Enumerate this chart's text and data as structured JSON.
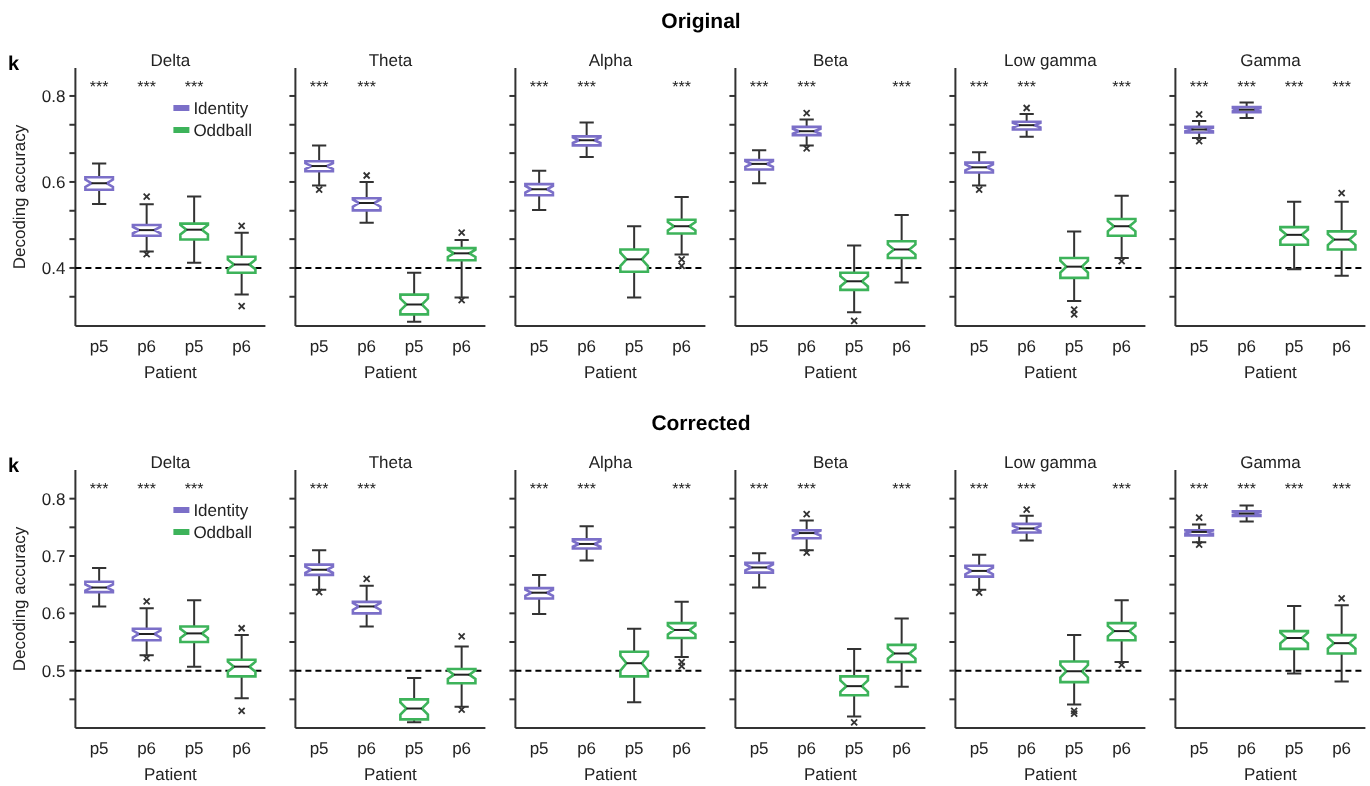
{
  "chart_data": [
    {
      "type": "box",
      "title": "Delta",
      "xlabel": "Patient",
      "ylabel": "Decoding accuracy",
      "categories": [
        "p5",
        "p6",
        "p5",
        "p6"
      ],
      "ylim": [
        0.265,
        0.865
      ],
      "yticks": [
        {
          "value": 0.333,
          "label": null
        },
        0.4,
        {
          "value": 0.467,
          "label": null
        },
        {
          "value": 0.533,
          "label": null
        },
        0.6,
        {
          "value": 0.667,
          "label": null
        },
        {
          "value": 0.733,
          "label": null
        },
        0.8
      ],
      "legend": "top right",
      "marker": "cross",
      "ref_lines": [
        {
          "axis": "y",
          "value": 0.4,
          "line_style": "dashed",
          "color": "#000000"
        }
      ],
      "annotations": [
        "k",
        "Original"
      ],
      "series": [
        {
          "name": "Identity",
          "color": "#7b6fc8",
          "value_labels": [
            "***",
            "***",
            null,
            null
          ],
          "boxes": [
            {
              "low": 0.549,
              "q1": 0.582,
              "median": 0.597,
              "q3": 0.611,
              "high": 0.643
            },
            {
              "low": 0.438,
              "q1": 0.475,
              "median": 0.488,
              "q3": 0.5,
              "high": 0.548,
              "outliers": [
                0.566,
                0.432
              ]
            },
            null,
            null
          ]
        },
        {
          "name": "Oddball",
          "color": "#3db35a",
          "value_labels": [
            null,
            null,
            "***",
            null
          ],
          "boxes": [
            null,
            null,
            {
              "low": 0.412,
              "q1": 0.466,
              "median": 0.489,
              "q3": 0.503,
              "high": 0.566
            },
            {
              "low": 0.338,
              "q1": 0.389,
              "median": 0.408,
              "q3": 0.426,
              "high": 0.482,
              "outliers": [
                0.498,
                0.311
              ]
            }
          ]
        }
      ]
    },
    {
      "type": "box",
      "title": "Theta",
      "xlabel": "Patient",
      "categories": [
        "p5",
        "p6",
        "p5",
        "p6"
      ],
      "ylim": [
        0.265,
        0.865
      ],
      "yticks": [
        {
          "value": 0.333,
          "label": null
        },
        0.4,
        {
          "value": 0.467,
          "label": null
        },
        {
          "value": 0.533,
          "label": null
        },
        0.6,
        {
          "value": 0.667,
          "label": null
        },
        {
          "value": 0.733,
          "label": null
        },
        0.8
      ],
      "tick_labels": "x",
      "marker": "cross",
      "ref_lines": [
        {
          "axis": "y",
          "value": 0.4,
          "line_style": "dashed",
          "color": "#000000"
        }
      ],
      "series": [
        {
          "color": "#7b6fc8",
          "value_labels": [
            "***",
            "***",
            null,
            null
          ],
          "boxes": [
            {
              "low": 0.592,
              "q1": 0.625,
              "median": 0.637,
              "q3": 0.648,
              "high": 0.685,
              "outliers": [
                0.582
              ]
            },
            {
              "low": 0.505,
              "q1": 0.534,
              "median": 0.551,
              "q3": 0.562,
              "high": 0.6,
              "outliers": [
                0.615
              ]
            },
            null,
            null
          ]
        },
        {
          "color": "#3db35a",
          "value_labels": [
            null,
            null,
            null,
            null
          ],
          "boxes": [
            null,
            null,
            {
              "low": 0.275,
              "q1": 0.292,
              "median": 0.315,
              "q3": 0.338,
              "high": 0.389
            },
            {
              "low": 0.331,
              "q1": 0.418,
              "median": 0.434,
              "q3": 0.446,
              "high": 0.465,
              "outliers": [
                0.482,
                0.325
              ]
            }
          ]
        }
      ]
    },
    {
      "type": "box",
      "title": "Alpha",
      "xlabel": "Patient",
      "categories": [
        "p5",
        "p6",
        "p5",
        "p6"
      ],
      "ylim": [
        0.265,
        0.865
      ],
      "yticks": [
        {
          "value": 0.333,
          "label": null
        },
        0.4,
        {
          "value": 0.467,
          "label": null
        },
        {
          "value": 0.533,
          "label": null
        },
        0.6,
        {
          "value": 0.667,
          "label": null
        },
        {
          "value": 0.733,
          "label": null
        },
        0.8
      ],
      "tick_labels": "x",
      "marker": "cross",
      "ref_lines": [
        {
          "axis": "y",
          "value": 0.4,
          "line_style": "dashed",
          "color": "#000000"
        }
      ],
      "series": [
        {
          "color": "#7b6fc8",
          "value_labels": [
            "***",
            "***",
            null,
            null
          ],
          "boxes": [
            {
              "low": 0.535,
              "q1": 0.569,
              "median": 0.583,
              "q3": 0.595,
              "high": 0.626
            },
            {
              "low": 0.658,
              "q1": 0.685,
              "median": 0.697,
              "q3": 0.706,
              "high": 0.738
            },
            null,
            null
          ]
        },
        {
          "color": "#3db35a",
          "value_labels": [
            null,
            null,
            null,
            "***"
          ],
          "boxes": [
            null,
            null,
            {
              "low": 0.331,
              "q1": 0.391,
              "median": 0.42,
              "q3": 0.443,
              "high": 0.497
            },
            {
              "low": 0.431,
              "q1": 0.48,
              "median": 0.497,
              "q3": 0.512,
              "high": 0.565,
              "outliers": [
                0.42,
                0.405
              ]
            }
          ]
        }
      ]
    },
    {
      "type": "box",
      "title": "Beta",
      "xlabel": "Patient",
      "categories": [
        "p5",
        "p6",
        "p5",
        "p6"
      ],
      "ylim": [
        0.265,
        0.865
      ],
      "yticks": [
        {
          "value": 0.333,
          "label": null
        },
        0.4,
        {
          "value": 0.467,
          "label": null
        },
        {
          "value": 0.533,
          "label": null
        },
        0.6,
        {
          "value": 0.667,
          "label": null
        },
        {
          "value": 0.733,
          "label": null
        },
        0.8
      ],
      "tick_labels": "x",
      "marker": "cross",
      "ref_lines": [
        {
          "axis": "y",
          "value": 0.4,
          "line_style": "dashed",
          "color": "#000000"
        }
      ],
      "series": [
        {
          "color": "#7b6fc8",
          "value_labels": [
            "***",
            "***",
            null,
            null
          ],
          "boxes": [
            {
              "low": 0.597,
              "q1": 0.629,
              "median": 0.642,
              "q3": 0.651,
              "high": 0.674
            },
            {
              "low": 0.685,
              "q1": 0.709,
              "median": 0.718,
              "q3": 0.728,
              "high": 0.745,
              "outliers": [
                0.76,
                0.678
              ]
            },
            null,
            null
          ]
        },
        {
          "color": "#3db35a",
          "value_labels": [
            null,
            null,
            null,
            "***"
          ],
          "boxes": [
            null,
            null,
            {
              "low": 0.297,
              "q1": 0.349,
              "median": 0.369,
              "q3": 0.389,
              "high": 0.452,
              "outliers": [
                0.277
              ]
            },
            {
              "low": 0.366,
              "q1": 0.423,
              "median": 0.443,
              "q3": 0.462,
              "high": 0.523
            }
          ]
        }
      ]
    },
    {
      "type": "box",
      "title": "Low gamma",
      "xlabel": "Patient",
      "categories": [
        "p5",
        "p6",
        "p5",
        "p6"
      ],
      "ylim": [
        0.265,
        0.865
      ],
      "yticks": [
        {
          "value": 0.333,
          "label": null
        },
        0.4,
        {
          "value": 0.467,
          "label": null
        },
        {
          "value": 0.533,
          "label": null
        },
        0.6,
        {
          "value": 0.667,
          "label": null
        },
        {
          "value": 0.733,
          "label": null
        },
        0.8
      ],
      "tick_labels": "x",
      "marker": "cross",
      "ref_lines": [
        {
          "axis": "y",
          "value": 0.4,
          "line_style": "dashed",
          "color": "#000000"
        }
      ],
      "series": [
        {
          "color": "#7b6fc8",
          "value_labels": [
            "***",
            "***",
            null,
            null
          ],
          "boxes": [
            {
              "low": 0.592,
              "q1": 0.622,
              "median": 0.634,
              "q3": 0.645,
              "high": 0.669,
              "outliers": [
                0.582
              ]
            },
            {
              "low": 0.705,
              "q1": 0.722,
              "median": 0.732,
              "q3": 0.74,
              "high": 0.758,
              "outliers": [
                0.772
              ]
            },
            null,
            null
          ]
        },
        {
          "color": "#3db35a",
          "value_labels": [
            null,
            null,
            null,
            "***"
          ],
          "boxes": [
            null,
            null,
            {
              "low": 0.323,
              "q1": 0.377,
              "median": 0.403,
              "q3": 0.423,
              "high": 0.485,
              "outliers": [
                0.303,
                0.292
              ]
            },
            {
              "low": 0.423,
              "q1": 0.475,
              "median": 0.497,
              "q3": 0.514,
              "high": 0.568,
              "outliers": [
                0.416
              ]
            }
          ]
        }
      ]
    },
    {
      "type": "box",
      "title": "Gamma",
      "xlabel": "Patient",
      "categories": [
        "p5",
        "p6",
        "p5",
        "p6"
      ],
      "ylim": [
        0.265,
        0.865
      ],
      "yticks": [
        {
          "value": 0.333,
          "label": null
        },
        0.4,
        {
          "value": 0.467,
          "label": null
        },
        {
          "value": 0.533,
          "label": null
        },
        0.6,
        {
          "value": 0.667,
          "label": null
        },
        {
          "value": 0.733,
          "label": null
        },
        0.8
      ],
      "tick_labels": "x",
      "marker": "cross",
      "ref_lines": [
        {
          "axis": "y",
          "value": 0.4,
          "line_style": "dashed",
          "color": "#000000"
        }
      ],
      "series": [
        {
          "color": "#7b6fc8",
          "value_labels": [
            "***",
            "***",
            null,
            null
          ],
          "boxes": [
            {
              "low": 0.702,
              "q1": 0.715,
              "median": 0.722,
              "q3": 0.728,
              "high": 0.742,
              "outliers": [
                0.757,
                0.695
              ]
            },
            {
              "low": 0.749,
              "q1": 0.762,
              "median": 0.768,
              "q3": 0.774,
              "high": 0.785
            },
            null,
            null
          ]
        },
        {
          "color": "#3db35a",
          "value_labels": [
            null,
            null,
            "***",
            "***"
          ],
          "boxes": [
            null,
            null,
            {
              "low": 0.397,
              "q1": 0.454,
              "median": 0.477,
              "q3": 0.495,
              "high": 0.554
            },
            {
              "low": 0.382,
              "q1": 0.443,
              "median": 0.466,
              "q3": 0.485,
              "high": 0.554,
              "outliers": [
                0.574
              ]
            }
          ]
        }
      ]
    },
    {
      "type": "box",
      "title": "Delta",
      "xlabel": "Patient",
      "ylabel": "Decoding accuracy",
      "categories": [
        "p5",
        "p6",
        "p5",
        "p6"
      ],
      "ylim": [
        0.4,
        0.85
      ],
      "yticks": [
        {
          "value": 0.45,
          "label": null
        },
        0.5,
        {
          "value": 0.55,
          "label": null
        },
        0.6,
        {
          "value": 0.65,
          "label": null
        },
        0.7,
        {
          "value": 0.75,
          "label": null
        },
        0.8
      ],
      "legend": "top right",
      "marker": "cross",
      "ref_lines": [
        {
          "axis": "y",
          "value": 0.5,
          "line_style": "dashed",
          "color": "#000000"
        }
      ],
      "annotations": [
        "k",
        "Corrected"
      ],
      "series": [
        {
          "name": "Identity",
          "color": "#7b6fc8",
          "value_labels": [
            "***",
            "***",
            null,
            null
          ],
          "boxes": [
            {
              "low": 0.612,
              "q1": 0.637,
              "median": 0.645,
              "q3": 0.655,
              "high": 0.679
            },
            {
              "low": 0.527,
              "q1": 0.553,
              "median": 0.564,
              "q3": 0.573,
              "high": 0.609,
              "outliers": [
                0.621,
                0.522
              ]
            },
            null,
            null
          ]
        },
        {
          "name": "Oddball",
          "color": "#3db35a",
          "value_labels": [
            null,
            null,
            "***",
            null
          ],
          "boxes": [
            null,
            null,
            {
              "low": 0.507,
              "q1": 0.55,
              "median": 0.565,
              "q3": 0.577,
              "high": 0.623
            },
            {
              "low": 0.452,
              "q1": 0.49,
              "median": 0.507,
              "q3": 0.519,
              "high": 0.562,
              "outliers": [
                0.574,
                0.43
              ]
            }
          ]
        }
      ]
    },
    {
      "type": "box",
      "title": "Theta",
      "xlabel": "Patient",
      "categories": [
        "p5",
        "p6",
        "p5",
        "p6"
      ],
      "ylim": [
        0.4,
        0.85
      ],
      "yticks": [
        {
          "value": 0.45,
          "label": null
        },
        0.5,
        {
          "value": 0.55,
          "label": null
        },
        0.6,
        {
          "value": 0.65,
          "label": null
        },
        0.7,
        {
          "value": 0.75,
          "label": null
        },
        0.8
      ],
      "tick_labels": "x",
      "marker": "cross",
      "ref_lines": [
        {
          "axis": "y",
          "value": 0.5,
          "line_style": "dashed",
          "color": "#000000"
        }
      ],
      "series": [
        {
          "color": "#7b6fc8",
          "value_labels": [
            "***",
            "***",
            null,
            null
          ],
          "boxes": [
            {
              "low": 0.641,
              "q1": 0.667,
              "median": 0.676,
              "q3": 0.685,
              "high": 0.71,
              "outliers": [
                0.637
              ]
            },
            {
              "low": 0.577,
              "q1": 0.6,
              "median": 0.612,
              "q3": 0.62,
              "high": 0.648,
              "outliers": [
                0.66
              ]
            },
            null,
            null
          ]
        },
        {
          "color": "#3db35a",
          "value_labels": [
            null,
            null,
            null,
            null
          ],
          "boxes": [
            null,
            null,
            {
              "low": 0.41,
              "q1": 0.415,
              "median": 0.434,
              "q3": 0.45,
              "high": 0.487
            },
            {
              "low": 0.437,
              "q1": 0.478,
              "median": 0.493,
              "q3": 0.503,
              "high": 0.542,
              "outliers": [
                0.56,
                0.432
              ]
            }
          ]
        }
      ]
    },
    {
      "type": "box",
      "title": "Alpha",
      "xlabel": "Patient",
      "categories": [
        "p5",
        "p6",
        "p5",
        "p6"
      ],
      "ylim": [
        0.4,
        0.85
      ],
      "yticks": [
        {
          "value": 0.45,
          "label": null
        },
        0.5,
        {
          "value": 0.55,
          "label": null
        },
        0.6,
        {
          "value": 0.65,
          "label": null
        },
        0.7,
        {
          "value": 0.75,
          "label": null
        },
        0.8
      ],
      "tick_labels": "x",
      "marker": "cross",
      "ref_lines": [
        {
          "axis": "y",
          "value": 0.5,
          "line_style": "dashed",
          "color": "#000000"
        }
      ],
      "series": [
        {
          "color": "#7b6fc8",
          "value_labels": [
            "***",
            "***",
            null,
            null
          ],
          "boxes": [
            {
              "low": 0.599,
              "q1": 0.626,
              "median": 0.636,
              "q3": 0.644,
              "high": 0.667
            },
            {
              "low": 0.692,
              "q1": 0.713,
              "median": 0.721,
              "q3": 0.729,
              "high": 0.752
            },
            null,
            null
          ]
        },
        {
          "color": "#3db35a",
          "value_labels": [
            null,
            null,
            null,
            "***"
          ],
          "boxes": [
            null,
            null,
            {
              "low": 0.445,
              "q1": 0.49,
              "median": 0.513,
              "q3": 0.533,
              "high": 0.573
            },
            {
              "low": 0.524,
              "q1": 0.557,
              "median": 0.571,
              "q3": 0.583,
              "high": 0.62,
              "outliers": [
                0.515,
                0.508
              ]
            }
          ]
        }
      ]
    },
    {
      "type": "box",
      "title": "Beta",
      "xlabel": "Patient",
      "categories": [
        "p5",
        "p6",
        "p5",
        "p6"
      ],
      "ylim": [
        0.4,
        0.85
      ],
      "yticks": [
        {
          "value": 0.45,
          "label": null
        },
        0.5,
        {
          "value": 0.55,
          "label": null
        },
        0.6,
        {
          "value": 0.65,
          "label": null
        },
        0.7,
        {
          "value": 0.75,
          "label": null
        },
        0.8
      ],
      "tick_labels": "x",
      "marker": "cross",
      "ref_lines": [
        {
          "axis": "y",
          "value": 0.5,
          "line_style": "dashed",
          "color": "#000000"
        }
      ],
      "series": [
        {
          "color": "#7b6fc8",
          "value_labels": [
            "***",
            "***",
            null,
            null
          ],
          "boxes": [
            {
              "low": 0.645,
              "q1": 0.671,
              "median": 0.68,
              "q3": 0.688,
              "high": 0.705
            },
            {
              "low": 0.71,
              "q1": 0.731,
              "median": 0.74,
              "q3": 0.745,
              "high": 0.762,
              "outliers": [
                0.773,
                0.706
              ]
            },
            null,
            null
          ]
        },
        {
          "color": "#3db35a",
          "value_labels": [
            null,
            null,
            null,
            "***"
          ],
          "boxes": [
            null,
            null,
            {
              "low": 0.42,
              "q1": 0.457,
              "median": 0.473,
              "q3": 0.49,
              "high": 0.538,
              "outliers": [
                0.41
              ]
            },
            {
              "low": 0.472,
              "q1": 0.515,
              "median": 0.53,
              "q3": 0.545,
              "high": 0.591
            }
          ]
        }
      ]
    },
    {
      "type": "box",
      "title": "Low gamma",
      "xlabel": "Patient",
      "categories": [
        "p5",
        "p6",
        "p5",
        "p6"
      ],
      "ylim": [
        0.4,
        0.85
      ],
      "yticks": [
        {
          "value": 0.45,
          "label": null
        },
        0.5,
        {
          "value": 0.55,
          "label": null
        },
        0.6,
        {
          "value": 0.65,
          "label": null
        },
        0.7,
        {
          "value": 0.75,
          "label": null
        },
        0.8
      ],
      "tick_labels": "x",
      "marker": "cross",
      "ref_lines": [
        {
          "axis": "y",
          "value": 0.5,
          "line_style": "dashed",
          "color": "#000000"
        }
      ],
      "series": [
        {
          "color": "#7b6fc8",
          "value_labels": [
            "***",
            "***",
            null,
            null
          ],
          "boxes": [
            {
              "low": 0.641,
              "q1": 0.664,
              "median": 0.674,
              "q3": 0.683,
              "high": 0.702,
              "outliers": [
                0.636
              ]
            },
            {
              "low": 0.727,
              "q1": 0.741,
              "median": 0.748,
              "q3": 0.756,
              "high": 0.77,
              "outliers": [
                0.781
              ]
            },
            null,
            null
          ]
        },
        {
          "color": "#3db35a",
          "value_labels": [
            null,
            null,
            null,
            "***"
          ],
          "boxes": [
            null,
            null,
            {
              "low": 0.441,
              "q1": 0.48,
              "median": 0.499,
              "q3": 0.516,
              "high": 0.562,
              "outliers": [
                0.43,
                0.425
              ]
            },
            {
              "low": 0.515,
              "q1": 0.553,
              "median": 0.569,
              "q3": 0.583,
              "high": 0.623,
              "outliers": [
                0.51
              ]
            }
          ]
        }
      ]
    },
    {
      "type": "box",
      "title": "Gamma",
      "xlabel": "Patient",
      "categories": [
        "p5",
        "p6",
        "p5",
        "p6"
      ],
      "ylim": [
        0.4,
        0.85
      ],
      "yticks": [
        {
          "value": 0.45,
          "label": null
        },
        0.5,
        {
          "value": 0.55,
          "label": null
        },
        0.6,
        {
          "value": 0.65,
          "label": null
        },
        0.7,
        {
          "value": 0.75,
          "label": null
        },
        0.8
      ],
      "tick_labels": "x",
      "marker": "cross",
      "ref_lines": [
        {
          "axis": "y",
          "value": 0.5,
          "line_style": "dashed",
          "color": "#000000"
        }
      ],
      "series": [
        {
          "color": "#7b6fc8",
          "value_labels": [
            "***",
            "***",
            null,
            null
          ],
          "boxes": [
            {
              "low": 0.724,
              "q1": 0.736,
              "median": 0.742,
              "q3": 0.745,
              "high": 0.755,
              "outliers": [
                0.767,
                0.72
              ]
            },
            {
              "low": 0.76,
              "q1": 0.77,
              "median": 0.774,
              "q3": 0.778,
              "high": 0.788
            },
            null,
            null
          ]
        },
        {
          "color": "#3db35a",
          "value_labels": [
            null,
            null,
            "***",
            "***"
          ],
          "boxes": [
            null,
            null,
            {
              "low": 0.495,
              "q1": 0.538,
              "median": 0.557,
              "q3": 0.569,
              "high": 0.613
            },
            {
              "low": 0.481,
              "q1": 0.53,
              "median": 0.548,
              "q3": 0.562,
              "high": 0.614,
              "outliers": [
                0.626
              ]
            }
          ]
        }
      ]
    }
  ]
}
